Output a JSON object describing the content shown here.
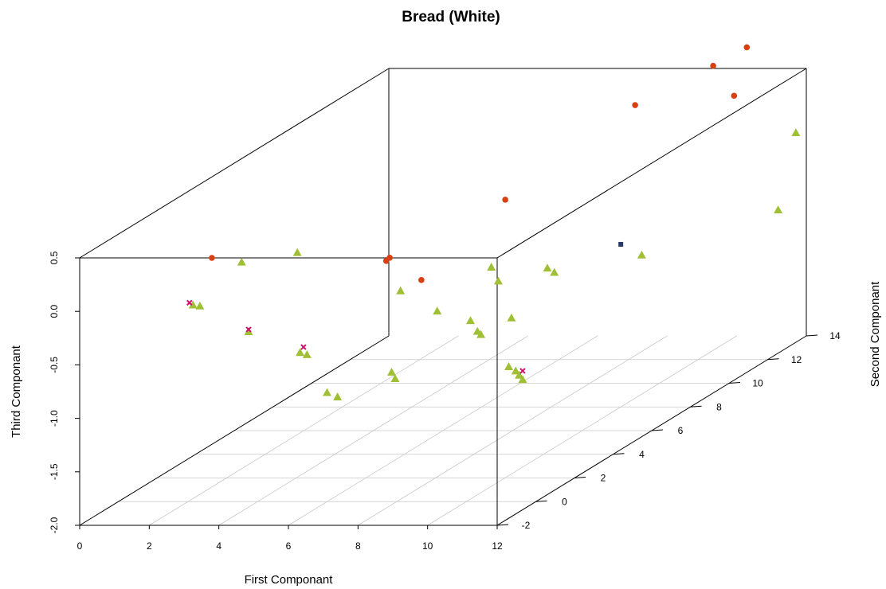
{
  "chart_data": {
    "type": "scatter",
    "title": "Bread (White)",
    "xlabel": "First Componant",
    "ylabel": "Second Componant",
    "zlabel": "Third Componant",
    "xlim": [
      0,
      12
    ],
    "ylim": [
      -2,
      14
    ],
    "zlim": [
      -2.0,
      0.5
    ],
    "x_ticks": [
      "0",
      "2",
      "4",
      "6",
      "8",
      "10",
      "12"
    ],
    "y_ticks": [
      "-2",
      "0",
      "2",
      "4",
      "6",
      "8",
      "10",
      "12",
      "14"
    ],
    "z_ticks": [
      "-2.0",
      "-1.5",
      "-1.0",
      "-0.5",
      "0.0",
      "0.5"
    ],
    "grid": true,
    "projection": "3d-perspective",
    "series": [
      {
        "marker": "circle",
        "color": "#d94010",
        "points": [
          {
            "x": 3.8,
            "y": -2,
            "z": 0.5
          },
          {
            "x": 7.8,
            "y": 0,
            "z": 0.28
          },
          {
            "x": 7.7,
            "y": 0,
            "z": 0.25
          },
          {
            "x": 8.9,
            "y": 4,
            "z": 0.38
          },
          {
            "x": 9.3,
            "y": 10,
            "z": 0.6
          },
          {
            "x": 9.6,
            "y": 13.5,
            "z": 0.58
          },
          {
            "x": 10.2,
            "y": 13.5,
            "z": 0.3
          },
          {
            "x": 10.4,
            "y": 13.8,
            "z": 0.72
          },
          {
            "x": 7.6,
            "y": 2,
            "z": -0.15
          }
        ]
      },
      {
        "marker": "triangle",
        "color": "#9fc035",
        "points": [
          {
            "x": 5.7,
            "y": -1,
            "z": 0.44
          },
          {
            "x": 4.1,
            "y": -1,
            "z": 0.35
          },
          {
            "x": 2.7,
            "y": -1,
            "z": -0.05
          },
          {
            "x": 2.9,
            "y": -1,
            "z": -0.06
          },
          {
            "x": 4.3,
            "y": -1,
            "z": -0.3
          },
          {
            "x": 5.5,
            "y": -0.5,
            "z": -0.55
          },
          {
            "x": 5.7,
            "y": -0.5,
            "z": -0.57
          },
          {
            "x": 6.0,
            "y": 0,
            "z": -0.98
          },
          {
            "x": 6.3,
            "y": 0,
            "z": -1.02
          },
          {
            "x": 7.0,
            "y": 2,
            "z": -0.25
          },
          {
            "x": 7.3,
            "y": 1,
            "z": -0.9
          },
          {
            "x": 7.4,
            "y": 1,
            "z": -0.96
          },
          {
            "x": 7.5,
            "y": 3,
            "z": -0.55
          },
          {
            "x": 7.9,
            "y": 4,
            "z": -0.75
          },
          {
            "x": 8.1,
            "y": 4,
            "z": -0.85
          },
          {
            "x": 8.2,
            "y": 4,
            "z": -0.88
          },
          {
            "x": 8.5,
            "y": 4,
            "z": -0.25
          },
          {
            "x": 8.7,
            "y": 4,
            "z": -0.38
          },
          {
            "x": 8.8,
            "y": 4.5,
            "z": -0.78
          },
          {
            "x": 9.0,
            "y": 6,
            "z": -0.48
          },
          {
            "x": 9.2,
            "y": 6,
            "z": -0.52
          },
          {
            "x": 9.0,
            "y": 4,
            "z": -1.18
          },
          {
            "x": 9.2,
            "y": 4,
            "z": -1.22
          },
          {
            "x": 9.3,
            "y": 4,
            "z": -1.26
          },
          {
            "x": 9.4,
            "y": 4,
            "z": -1.3
          },
          {
            "x": 10.6,
            "y": 8,
            "z": -0.58
          },
          {
            "x": 12.3,
            "y": 12,
            "z": -0.6
          },
          {
            "x": 11.7,
            "y": 14,
            "z": -0.1
          }
        ]
      },
      {
        "marker": "cross",
        "color": "#d0106e",
        "points": [
          {
            "x": 2.6,
            "y": -1,
            "z": -0.03
          },
          {
            "x": 4.3,
            "y": -1,
            "z": -0.28
          },
          {
            "x": 5.6,
            "y": -0.5,
            "z": -0.5
          },
          {
            "x": 9.4,
            "y": 4,
            "z": -1.22
          }
        ]
      },
      {
        "marker": "square",
        "color": "#2a3a66",
        "points": [
          {
            "x": 10.0,
            "y": 8,
            "z": -0.48
          }
        ]
      }
    ]
  }
}
